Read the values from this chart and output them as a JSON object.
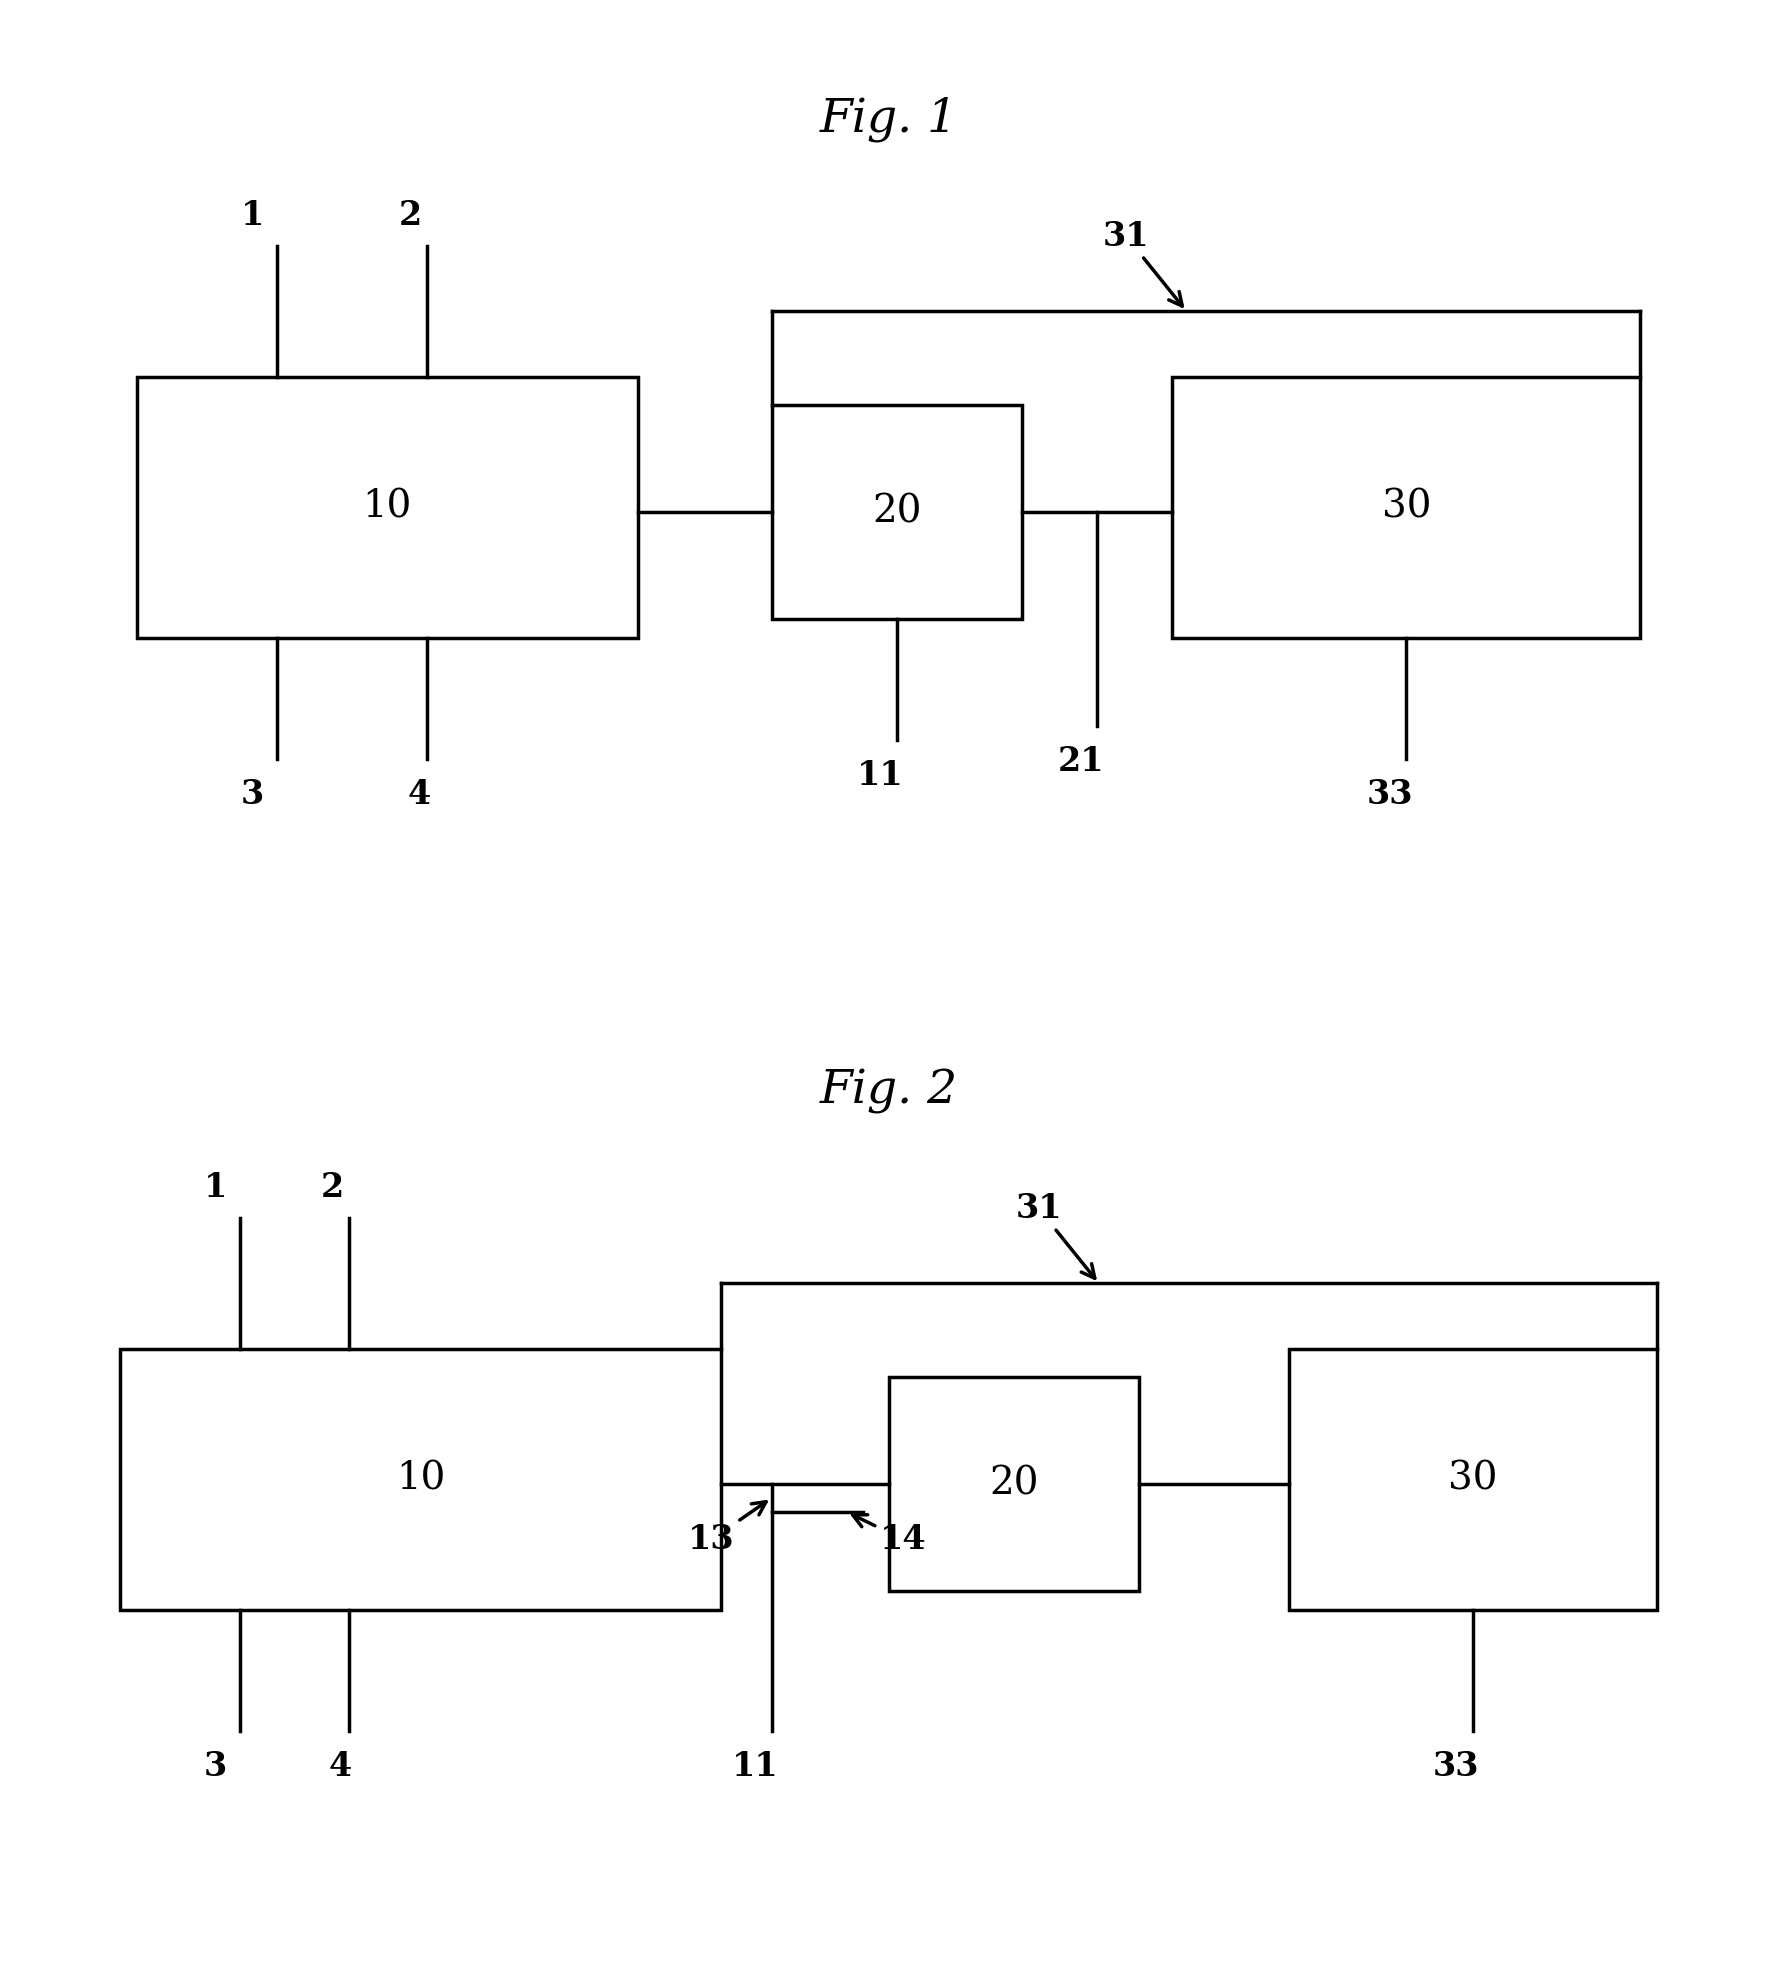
{
  "fig1_title": "Fig. 1",
  "fig2_title": "Fig. 2",
  "background_color": "#ffffff",
  "line_color": "#000000",
  "box_color": "#ffffff",
  "box_edge_color": "#000000",
  "line_width": 2.5,
  "font_size_title": 34,
  "font_size_label": 24,
  "font_size_box": 28
}
